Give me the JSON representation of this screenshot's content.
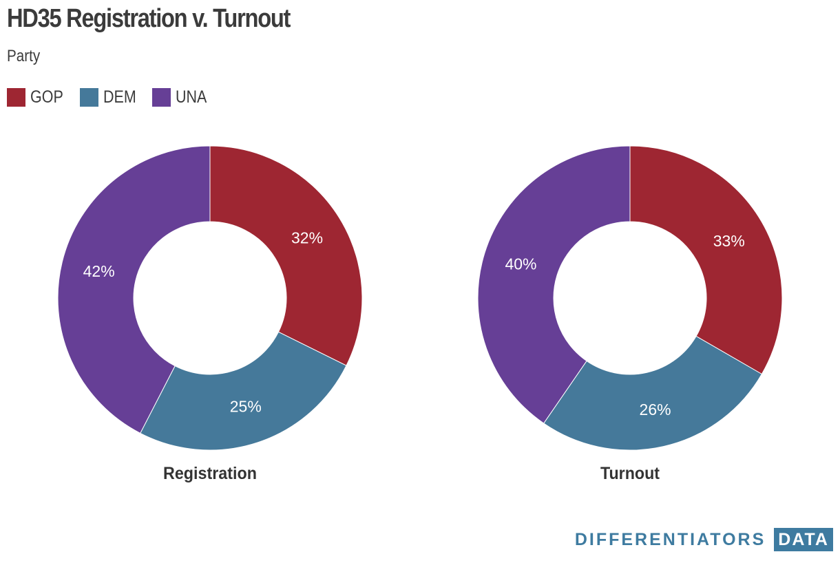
{
  "title": "HD35 Registration v. Turnout",
  "subtitle": "Party",
  "legend": [
    {
      "label": "GOP",
      "color": "#9e2632"
    },
    {
      "label": "DEM",
      "color": "#45799a"
    },
    {
      "label": "UNA",
      "color": "#663f96"
    }
  ],
  "logo": {
    "main": "DIFFERENTIATORS",
    "box": "DATA"
  },
  "chart_data": [
    {
      "type": "pie",
      "variant": "donut",
      "title": "Registration",
      "categories": [
        "GOP",
        "DEM",
        "UNA"
      ],
      "values": [
        32,
        25,
        42
      ],
      "value_labels": [
        "32%",
        "25%",
        "42%"
      ],
      "colors": [
        "#9e2632",
        "#45799a",
        "#663f96"
      ]
    },
    {
      "type": "pie",
      "variant": "donut",
      "title": "Turnout",
      "categories": [
        "GOP",
        "DEM",
        "UNA"
      ],
      "values": [
        33,
        26,
        40
      ],
      "value_labels": [
        "33%",
        "26%",
        "40%"
      ],
      "colors": [
        "#9e2632",
        "#45799a",
        "#663f96"
      ]
    }
  ]
}
